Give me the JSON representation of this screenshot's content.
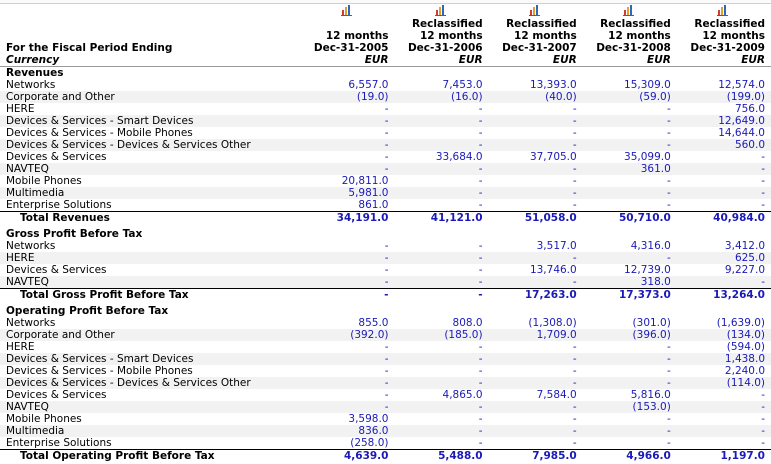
{
  "header": {
    "period_label": "For the Fiscal Period Ending",
    "currency_label": "Currency",
    "columns": [
      {
        "line1": "",
        "line2": "12 months",
        "line3": "Dec-31-2005",
        "currency": "EUR"
      },
      {
        "line1": "Reclassified",
        "line2": "12 months",
        "line3": "Dec-31-2006",
        "currency": "EUR"
      },
      {
        "line1": "Reclassified",
        "line2": "12 months",
        "line3": "Dec-31-2007",
        "currency": "EUR"
      },
      {
        "line1": "Reclassified",
        "line2": "12 months",
        "line3": "Dec-31-2008",
        "currency": "EUR"
      },
      {
        "line1": "Reclassified",
        "line2": "12 months",
        "line3": "Dec-31-2009",
        "currency": "EUR"
      }
    ],
    "icon": "bar-chart-icon"
  },
  "sections": [
    {
      "title": "Revenues",
      "rows": [
        {
          "label": "Networks",
          "values": [
            "6,557.0",
            "7,453.0",
            "13,393.0",
            "15,309.0",
            "12,574.0"
          ]
        },
        {
          "label": "Corporate and Other",
          "values": [
            "(19.0)",
            "(16.0)",
            "(40.0)",
            "(59.0)",
            "(199.0)"
          ]
        },
        {
          "label": "HERE",
          "values": [
            "-",
            "-",
            "-",
            "-",
            "756.0"
          ]
        },
        {
          "label": "Devices & Services - Smart Devices",
          "values": [
            "-",
            "-",
            "-",
            "-",
            "12,649.0"
          ]
        },
        {
          "label": "Devices & Services - Mobile Phones",
          "values": [
            "-",
            "-",
            "-",
            "-",
            "14,644.0"
          ]
        },
        {
          "label": "Devices & Services - Devices & Services Other",
          "values": [
            "-",
            "-",
            "-",
            "-",
            "560.0"
          ]
        },
        {
          "label": "Devices & Services",
          "values": [
            "-",
            "33,684.0",
            "37,705.0",
            "35,099.0",
            "-"
          ]
        },
        {
          "label": "NAVTEQ",
          "values": [
            "-",
            "-",
            "-",
            "361.0",
            "-"
          ]
        },
        {
          "label": "Mobile Phones",
          "values": [
            "20,811.0",
            "-",
            "-",
            "-",
            "-"
          ]
        },
        {
          "label": "Multimedia",
          "values": [
            "5,981.0",
            "-",
            "-",
            "-",
            "-"
          ]
        },
        {
          "label": "Enterprise Solutions",
          "values": [
            "861.0",
            "-",
            "-",
            "-",
            "-"
          ]
        }
      ],
      "total": {
        "label": "Total Revenues",
        "values": [
          "34,191.0",
          "41,121.0",
          "51,058.0",
          "50,710.0",
          "40,984.0"
        ]
      }
    },
    {
      "title": "Gross Profit Before Tax",
      "rows": [
        {
          "label": "Networks",
          "values": [
            "-",
            "-",
            "3,517.0",
            "4,316.0",
            "3,412.0"
          ]
        },
        {
          "label": "HERE",
          "values": [
            "-",
            "-",
            "-",
            "-",
            "625.0"
          ]
        },
        {
          "label": "Devices & Services",
          "values": [
            "-",
            "-",
            "13,746.0",
            "12,739.0",
            "9,227.0"
          ]
        },
        {
          "label": "NAVTEQ",
          "values": [
            "-",
            "-",
            "-",
            "318.0",
            "-"
          ]
        }
      ],
      "total": {
        "label": "Total Gross Profit Before Tax",
        "values": [
          "-",
          "-",
          "17,263.0",
          "17,373.0",
          "13,264.0"
        ]
      }
    },
    {
      "title": "Operating Profit Before Tax",
      "rows": [
        {
          "label": "Networks",
          "values": [
            "855.0",
            "808.0",
            "(1,308.0)",
            "(301.0)",
            "(1,639.0)"
          ]
        },
        {
          "label": "Corporate and Other",
          "values": [
            "(392.0)",
            "(185.0)",
            "1,709.0",
            "(396.0)",
            "(134.0)"
          ]
        },
        {
          "label": "HERE",
          "values": [
            "-",
            "-",
            "-",
            "-",
            "(594.0)"
          ]
        },
        {
          "label": "Devices & Services - Smart Devices",
          "values": [
            "-",
            "-",
            "-",
            "-",
            "1,438.0"
          ]
        },
        {
          "label": "Devices & Services - Mobile Phones",
          "values": [
            "-",
            "-",
            "-",
            "-",
            "2,240.0"
          ]
        },
        {
          "label": "Devices & Services - Devices & Services Other",
          "values": [
            "-",
            "-",
            "-",
            "-",
            "(114.0)"
          ]
        },
        {
          "label": "Devices & Services",
          "values": [
            "-",
            "4,865.0",
            "7,584.0",
            "5,816.0",
            "-"
          ]
        },
        {
          "label": "NAVTEQ",
          "values": [
            "-",
            "-",
            "-",
            "(153.0)",
            "-"
          ]
        },
        {
          "label": "Mobile Phones",
          "values": [
            "3,598.0",
            "-",
            "-",
            "-",
            "-"
          ]
        },
        {
          "label": "Multimedia",
          "values": [
            "836.0",
            "-",
            "-",
            "-",
            "-"
          ]
        },
        {
          "label": "Enterprise Solutions",
          "values": [
            "(258.0)",
            "-",
            "-",
            "-",
            "-"
          ]
        }
      ],
      "total": {
        "label": "Total Operating Profit Before Tax",
        "values": [
          "4,639.0",
          "5,488.0",
          "7,985.0",
          "4,966.0",
          "1,197.0"
        ]
      }
    }
  ]
}
